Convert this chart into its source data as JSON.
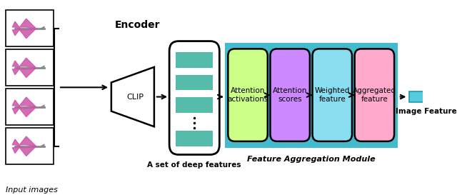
{
  "figsize": [
    6.4,
    2.73
  ],
  "dpi": 100,
  "bg_color": "#ffffff",
  "input_images_label": "Input images",
  "encoder_label": "Encoder",
  "deep_features_label": "A set of deep features",
  "feature_agg_label": "Feature Aggregation Module",
  "image_feature_label": "Image Feature",
  "clip_label": "CLIP",
  "box_labels": [
    "Attention\nactivations",
    "Attention\nscores",
    "Weighted\nfeature",
    "Aggregated\nfeature"
  ],
  "box_colors": [
    "#ccff88",
    "#cc88ff",
    "#88ddee",
    "#ffaacc"
  ],
  "teal_color": "#44bbcc",
  "stripe_color": "#55bbaa",
  "image_feature_color": "#55ccdd",
  "input_box_color": "#ffffff",
  "deep_feat_bg": "#ffffff",
  "arrow_color": "#000000"
}
